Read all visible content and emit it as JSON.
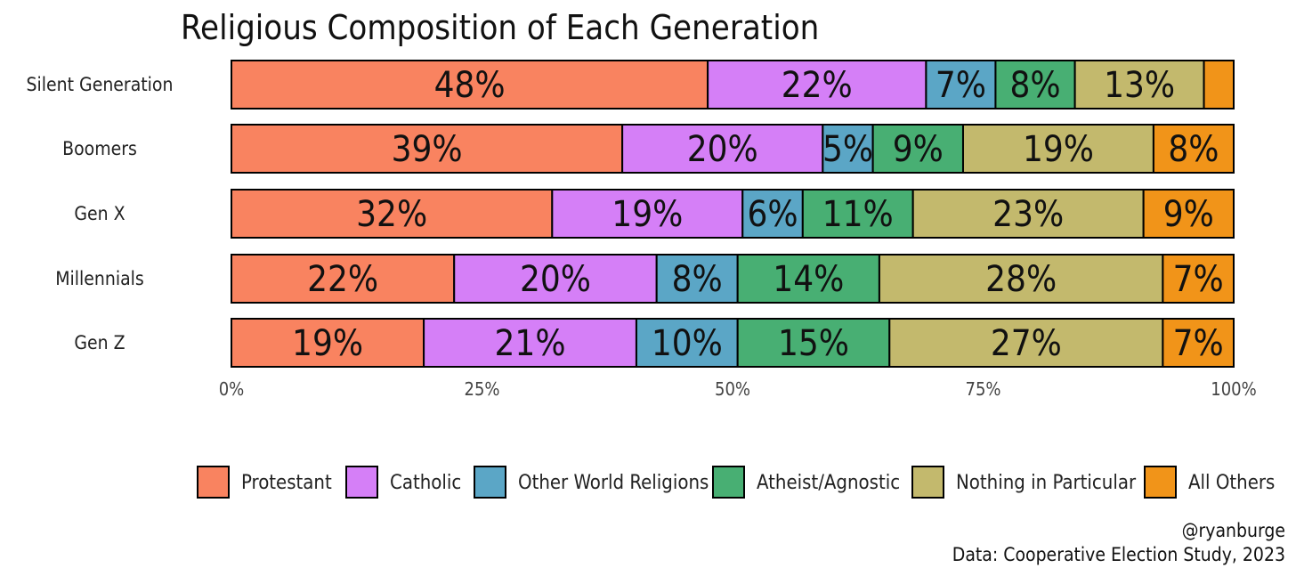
{
  "chart_data": {
    "type": "bar",
    "orientation": "horizontal",
    "stacked": true,
    "title": "Religious Composition of Each Generation",
    "categories": [
      "Silent Generation",
      "Boomers",
      "Gen X",
      "Millennials",
      "Gen Z"
    ],
    "series": [
      {
        "name": "Protestant",
        "color": "#F98360",
        "values": [
          48,
          39,
          32,
          22,
          19
        ],
        "labels": [
          "48%",
          "39%",
          "32%",
          "22%",
          "19%"
        ]
      },
      {
        "name": "Catholic",
        "color": "#D57FF7",
        "values": [
          22,
          20,
          19,
          20,
          21
        ],
        "labels": [
          "22%",
          "20%",
          "19%",
          "20%",
          "21%"
        ]
      },
      {
        "name": "Other World Religions",
        "color": "#5BA6C6",
        "values": [
          7,
          5,
          6,
          8,
          10
        ],
        "labels": [
          "7%",
          "5%",
          "6%",
          "8%",
          "10%"
        ]
      },
      {
        "name": "Atheist/Agnostic",
        "color": "#48AF73",
        "values": [
          8,
          9,
          11,
          14,
          15
        ],
        "labels": [
          "8%",
          "9%",
          "11%",
          "14%",
          "15%"
        ]
      },
      {
        "name": "Nothing in Particular",
        "color": "#C3B96D",
        "values": [
          13,
          19,
          23,
          28,
          27
        ],
        "labels": [
          "13%",
          "19%",
          "23%",
          "28%",
          "27%"
        ]
      },
      {
        "name": "All Others",
        "color": "#F19419",
        "values": [
          3,
          8,
          9,
          7,
          7
        ],
        "labels": [
          "",
          "8%",
          "9%",
          "7%",
          "7%"
        ]
      }
    ],
    "xlim": [
      0,
      100
    ],
    "xticks": [
      "0%",
      "25%",
      "50%",
      "75%",
      "100%"
    ],
    "grid": false,
    "legend_position": "bottom",
    "captions": [
      "@ryanburge",
      "Data: Cooperative Election Study, 2023"
    ]
  }
}
